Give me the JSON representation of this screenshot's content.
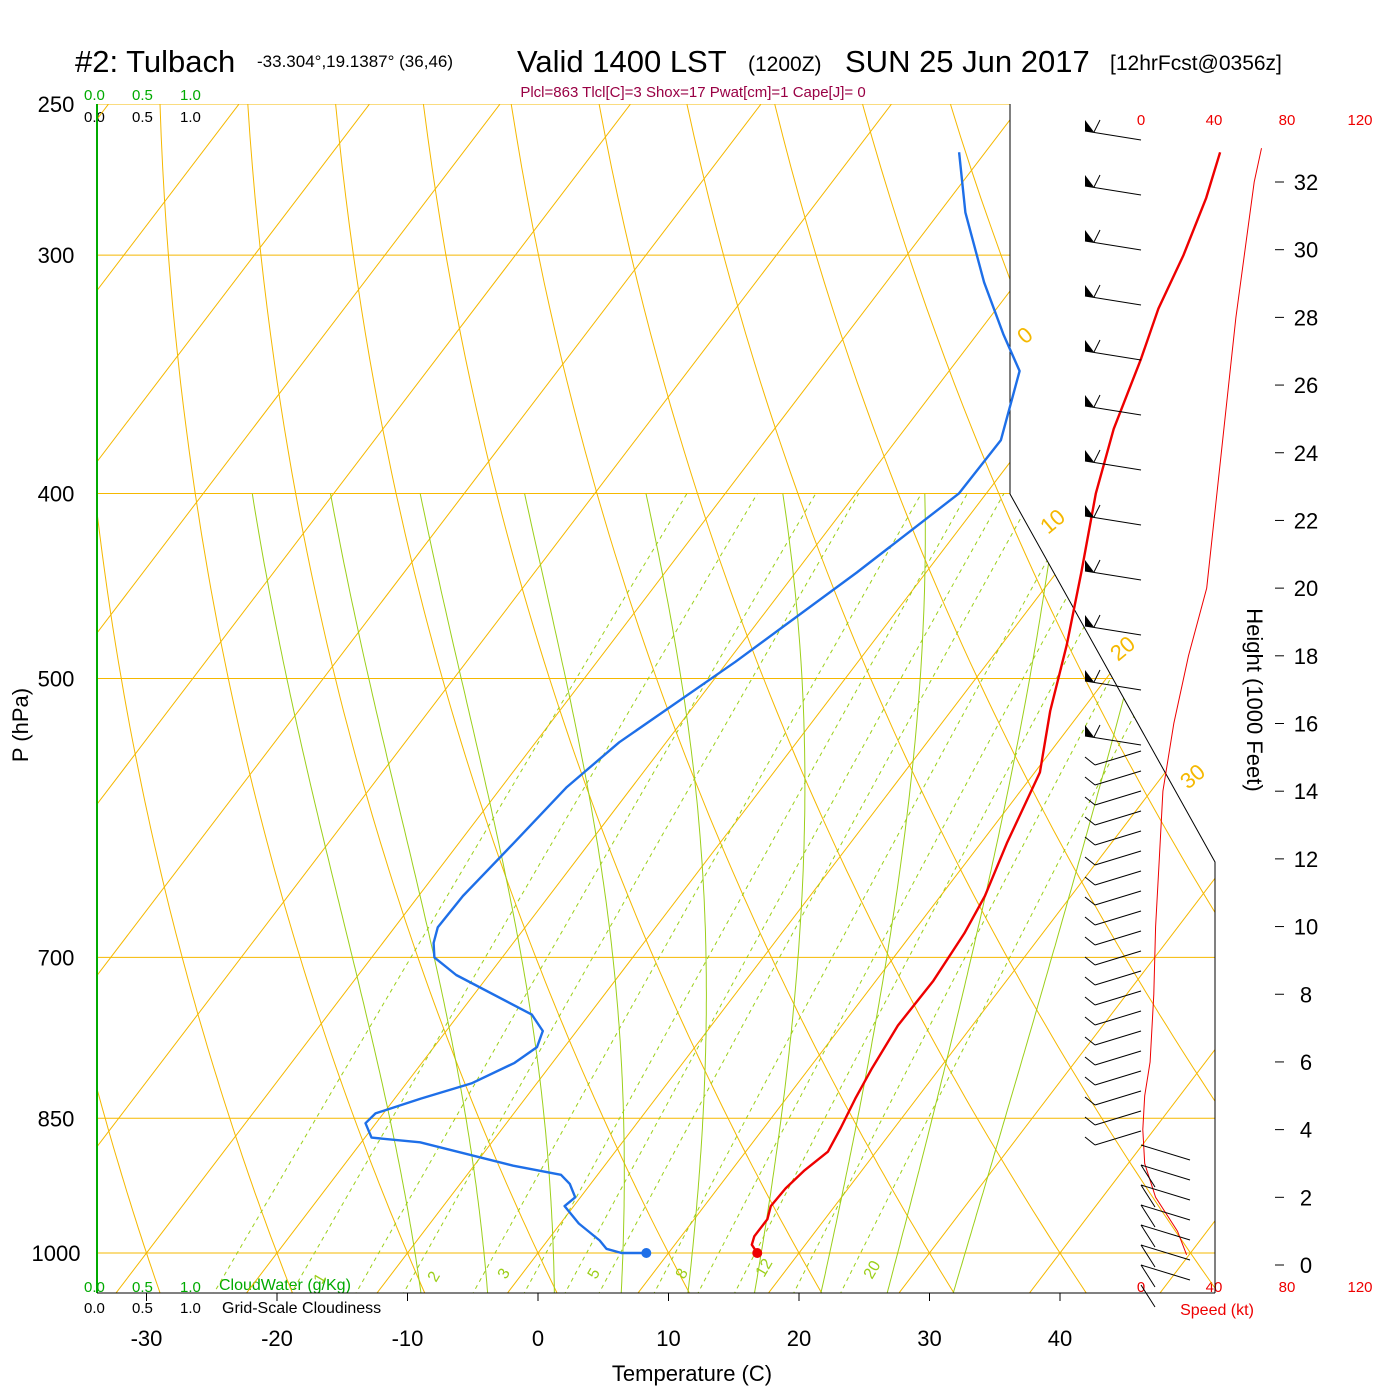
{
  "header": {
    "station": "#2: Tulbach",
    "coords": "-33.304°,19.1387° (36,46)",
    "valid": "Valid 1400 LST",
    "zulu": "(1200Z)",
    "date": "SUN 25 Jun 2017",
    "fcst": "[12hrFcst@0356z]",
    "indices": "Plcl=863 Tlcl[C]=3 Shox=17 Pwat[cm]=1 Cape[J]= 0"
  },
  "left_panel": {
    "top_green_ticks": [
      "0.0",
      "0.5",
      "1.0"
    ],
    "top_black_ticks": [
      "0.0",
      "0.5",
      "1.0"
    ],
    "bottom_green_ticks": [
      "0.0",
      "0.5",
      "1.0"
    ],
    "bottom_black_ticks": [
      "0.0",
      "0.5",
      "1.0"
    ],
    "cloudwater_label": "CloudWater (g/Kg)",
    "cloudiness_label": "Grid-Scale Cloudiness"
  },
  "wind_panel": {
    "speed_ticks": [
      "0",
      "40",
      "80",
      "120"
    ],
    "speed_label": "Speed (kt)",
    "height_label": "Height (1000 Feet)",
    "height_ticks": [
      "0",
      "2",
      "4",
      "6",
      "8",
      "10",
      "12",
      "14",
      "16",
      "18",
      "20",
      "22",
      "24",
      "26",
      "28",
      "30",
      "32"
    ]
  },
  "colors": {
    "isobar": "#f5b800",
    "dry_adiabat": "#f5b800",
    "moist_adiabat": "#9ccf1a",
    "mixing_ratio": "#9ccf1a",
    "temperature": "#ee0000",
    "dewpoint": "#1e6fe8",
    "cloud": "#00aa00",
    "header_index": "#990044",
    "speed": "#ee0000"
  },
  "chart_data": {
    "type": "line",
    "title": "#2: Tulbach  Valid 1400 LST (1200Z) SUN 25 Jun 2017",
    "xlabel": "Temperature (C)",
    "ylabel": "P (hPa)",
    "x_ticks": [
      -30,
      -20,
      -10,
      0,
      10,
      20,
      30,
      40
    ],
    "y_ticks": [
      250,
      300,
      400,
      500,
      700,
      850,
      1000
    ],
    "y_scale": "log",
    "isotherm_labels": [
      10,
      0,
      -10,
      -20,
      -30
    ],
    "dry_adiabat_labels": [
      0,
      10,
      20,
      30
    ],
    "mixing_ratio_labels": [
      "1",
      "2",
      "3",
      "5",
      "8",
      "12",
      "20"
    ],
    "series": [
      {
        "name": "Temperature",
        "points": [
          [
            1000,
            16.8
          ],
          [
            990,
            15.9
          ],
          [
            980,
            15.6
          ],
          [
            960,
            15.6
          ],
          [
            945,
            15.1
          ],
          [
            925,
            15.2
          ],
          [
            905,
            15.6
          ],
          [
            885,
            16.3
          ],
          [
            860,
            15.9
          ],
          [
            830,
            15.3
          ],
          [
            800,
            14.8
          ],
          [
            760,
            14.3
          ],
          [
            720,
            14.4
          ],
          [
            680,
            14.0
          ],
          [
            650,
            13.4
          ],
          [
            610,
            12.0
          ],
          [
            560,
            10.4
          ],
          [
            520,
            7.6
          ],
          [
            480,
            5.0
          ],
          [
            440,
            1.9
          ],
          [
            400,
            -1.6
          ],
          [
            370,
            -4.0
          ],
          [
            340,
            -6.0
          ],
          [
            320,
            -7.6
          ],
          [
            300,
            -8.8
          ],
          [
            280,
            -10.4
          ],
          [
            265,
            -12.0
          ]
        ]
      },
      {
        "name": "Dewpoint",
        "points": [
          [
            1000,
            8.3
          ],
          [
            1000,
            6.4
          ],
          [
            995,
            5.0
          ],
          [
            985,
            4.0
          ],
          [
            965,
            1.4
          ],
          [
            945,
            -0.7
          ],
          [
            935,
            -0.4
          ],
          [
            920,
            -1.6
          ],
          [
            910,
            -2.8
          ],
          [
            900,
            -7.0
          ],
          [
            875,
            -15.5
          ],
          [
            870,
            -19.5
          ],
          [
            855,
            -20.8
          ],
          [
            845,
            -20.6
          ],
          [
            830,
            -18.0
          ],
          [
            815,
            -15.0
          ],
          [
            795,
            -12.9
          ],
          [
            780,
            -12.1
          ],
          [
            765,
            -12.6
          ],
          [
            750,
            -14.4
          ],
          [
            715,
            -22.5
          ],
          [
            700,
            -25.2
          ],
          [
            688,
            -26.1
          ],
          [
            675,
            -26.7
          ],
          [
            650,
            -26.6
          ],
          [
            610,
            -25.8
          ],
          [
            570,
            -25.0
          ],
          [
            540,
            -23.6
          ],
          [
            490,
            -19.4
          ],
          [
            440,
            -15.3
          ],
          [
            400,
            -12.1
          ],
          [
            375,
            -12.0
          ],
          [
            345,
            -14.6
          ],
          [
            330,
            -18.0
          ],
          [
            310,
            -22.5
          ],
          [
            285,
            -28.0
          ],
          [
            265,
            -32.0
          ]
        ]
      }
    ],
    "parcel_markers": [
      {
        "name": "surface temperature",
        "p": 1000,
        "t": 16.8
      },
      {
        "name": "surface dewpoint",
        "p": 1000,
        "t": 8.3
      }
    ],
    "winds": {
      "barb_count": 40,
      "speed_profile_kt": [
        [
          0.3,
          25
        ],
        [
          1,
          20
        ],
        [
          2,
          8
        ],
        [
          3,
          2
        ],
        [
          4,
          1
        ],
        [
          5,
          2
        ],
        [
          6,
          5
        ],
        [
          8,
          7
        ],
        [
          10,
          8
        ],
        [
          12,
          10
        ],
        [
          14,
          12
        ],
        [
          16,
          18
        ],
        [
          18,
          26
        ],
        [
          20,
          36
        ],
        [
          24,
          44
        ],
        [
          28,
          52
        ],
        [
          32,
          62
        ],
        [
          33,
          66
        ]
      ]
    }
  }
}
